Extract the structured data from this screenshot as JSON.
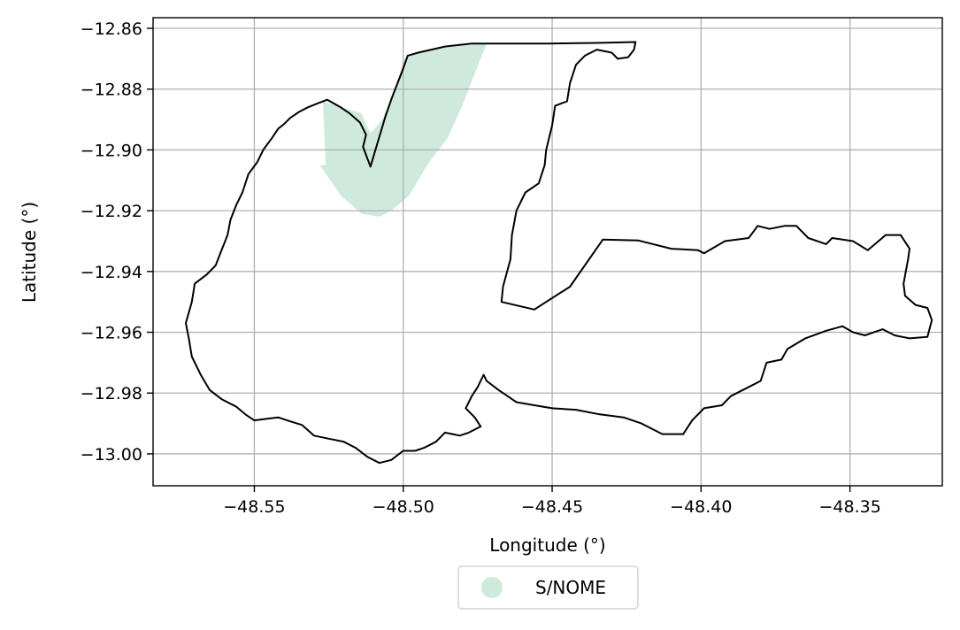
{
  "chart_data": {
    "type": "map",
    "xlabel": "Longitude (°)",
    "ylabel": "Latitude (°)",
    "xlim": [
      -48.584,
      -48.319
    ],
    "ylim": [
      -13.0105,
      -12.8565
    ],
    "x_ticks": [
      -48.55,
      -48.5,
      -48.45,
      -48.4,
      -48.35
    ],
    "y_ticks": [
      -12.86,
      -12.88,
      -12.9,
      -12.92,
      -12.94,
      -12.96,
      -12.98,
      -13.0
    ],
    "x_tick_labels": [
      "−48.55",
      "−48.50",
      "−48.45",
      "−48.40",
      "−48.35"
    ],
    "y_tick_labels": [
      "−12.86",
      "−12.88",
      "−12.90",
      "−12.92",
      "−12.94",
      "−12.96",
      "−12.98",
      "−13.00"
    ],
    "grid": true,
    "legend": {
      "placement": "bottom-center",
      "entries": [
        {
          "label": "S/NOME",
          "color": "#cfeadd"
        }
      ]
    },
    "boundary": {
      "color": "#000000",
      "points": [
        [
          -48.5255,
          -12.8835
        ],
        [
          -48.521,
          -12.886
        ],
        [
          -48.518,
          -12.888
        ],
        [
          -48.5145,
          -12.891
        ],
        [
          -48.5125,
          -12.895
        ],
        [
          -48.5135,
          -12.899
        ],
        [
          -48.511,
          -12.9055
        ],
        [
          -48.506,
          -12.889
        ],
        [
          -48.5035,
          -12.882
        ],
        [
          -48.5005,
          -12.8745
        ],
        [
          -48.4985,
          -12.869
        ],
        [
          -48.495,
          -12.868
        ],
        [
          -48.486,
          -12.866
        ],
        [
          -48.477,
          -12.865
        ],
        [
          -48.451,
          -12.865
        ],
        [
          -48.435,
          -12.8648
        ],
        [
          -48.422,
          -12.8645
        ],
        [
          -48.4225,
          -12.867
        ],
        [
          -48.4245,
          -12.8695
        ],
        [
          -48.428,
          -12.87
        ],
        [
          -48.43,
          -12.868
        ],
        [
          -48.435,
          -12.867
        ],
        [
          -48.439,
          -12.869
        ],
        [
          -48.442,
          -12.872
        ],
        [
          -48.444,
          -12.878
        ],
        [
          -48.445,
          -12.884
        ],
        [
          -48.449,
          -12.8855
        ],
        [
          -48.45,
          -12.892
        ],
        [
          -48.452,
          -12.9
        ],
        [
          -48.4525,
          -12.905
        ],
        [
          -48.4545,
          -12.911
        ],
        [
          -48.459,
          -12.914
        ],
        [
          -48.462,
          -12.92
        ],
        [
          -48.4635,
          -12.928
        ],
        [
          -48.464,
          -12.936
        ],
        [
          -48.4665,
          -12.945
        ],
        [
          -48.467,
          -12.95
        ],
        [
          -48.456,
          -12.9525
        ],
        [
          -48.444,
          -12.945
        ],
        [
          -48.433,
          -12.9295
        ],
        [
          -48.421,
          -12.9298
        ],
        [
          -48.41,
          -12.9325
        ],
        [
          -48.401,
          -12.933
        ],
        [
          -48.399,
          -12.934
        ],
        [
          -48.392,
          -12.93
        ],
        [
          -48.384,
          -12.929
        ],
        [
          -48.381,
          -12.925
        ],
        [
          -48.377,
          -12.926
        ],
        [
          -48.372,
          -12.925
        ],
        [
          -48.368,
          -12.925
        ],
        [
          -48.364,
          -12.929
        ],
        [
          -48.358,
          -12.931
        ],
        [
          -48.356,
          -12.929
        ],
        [
          -48.349,
          -12.93
        ],
        [
          -48.344,
          -12.933
        ],
        [
          -48.338,
          -12.928
        ],
        [
          -48.333,
          -12.928
        ],
        [
          -48.33,
          -12.9325
        ],
        [
          -48.3305,
          -12.936
        ],
        [
          -48.332,
          -12.944
        ],
        [
          -48.3315,
          -12.948
        ],
        [
          -48.328,
          -12.951
        ],
        [
          -48.324,
          -12.952
        ],
        [
          -48.3225,
          -12.956
        ],
        [
          -48.324,
          -12.9615
        ],
        [
          -48.33,
          -12.962
        ],
        [
          -48.335,
          -12.961
        ],
        [
          -48.339,
          -12.959
        ],
        [
          -48.345,
          -12.961
        ],
        [
          -48.349,
          -12.96
        ],
        [
          -48.3525,
          -12.958
        ],
        [
          -48.358,
          -12.9595
        ],
        [
          -48.365,
          -12.962
        ],
        [
          -48.371,
          -12.9655
        ],
        [
          -48.373,
          -12.969
        ],
        [
          -48.378,
          -12.97
        ],
        [
          -48.38,
          -12.976
        ],
        [
          -48.386,
          -12.979
        ],
        [
          -48.39,
          -12.981
        ],
        [
          -48.393,
          -12.984
        ],
        [
          -48.399,
          -12.985
        ],
        [
          -48.403,
          -12.989
        ],
        [
          -48.406,
          -12.9935
        ],
        [
          -48.413,
          -12.9935
        ],
        [
          -48.42,
          -12.99
        ],
        [
          -48.426,
          -12.988
        ],
        [
          -48.434,
          -12.987
        ],
        [
          -48.442,
          -12.9855
        ],
        [
          -48.45,
          -12.985
        ],
        [
          -48.456,
          -12.984
        ],
        [
          -48.462,
          -12.983
        ],
        [
          -48.468,
          -12.979
        ],
        [
          -48.472,
          -12.976
        ],
        [
          -48.473,
          -12.974
        ],
        [
          -48.475,
          -12.978
        ],
        [
          -48.477,
          -12.981
        ],
        [
          -48.479,
          -12.985
        ],
        [
          -48.476,
          -12.988
        ],
        [
          -48.474,
          -12.991
        ],
        [
          -48.478,
          -12.993
        ],
        [
          -48.481,
          -12.994
        ],
        [
          -48.486,
          -12.993
        ],
        [
          -48.489,
          -12.996
        ],
        [
          -48.493,
          -12.998
        ],
        [
          -48.496,
          -12.999
        ],
        [
          -48.5,
          -12.999
        ],
        [
          -48.504,
          -13.002
        ],
        [
          -48.508,
          -13.003
        ],
        [
          -48.512,
          -13.001
        ],
        [
          -48.516,
          -12.998
        ],
        [
          -48.52,
          -12.996
        ],
        [
          -48.525,
          -12.995
        ],
        [
          -48.53,
          -12.994
        ],
        [
          -48.534,
          -12.9905
        ],
        [
          -48.539,
          -12.989
        ],
        [
          -48.542,
          -12.988
        ],
        [
          -48.546,
          -12.9885
        ],
        [
          -48.55,
          -12.989
        ],
        [
          -48.553,
          -12.987
        ],
        [
          -48.556,
          -12.9845
        ],
        [
          -48.561,
          -12.982
        ],
        [
          -48.565,
          -12.979
        ],
        [
          -48.568,
          -12.974
        ],
        [
          -48.571,
          -12.968
        ],
        [
          -48.572,
          -12.962
        ],
        [
          -48.573,
          -12.957
        ],
        [
          -48.571,
          -12.95
        ],
        [
          -48.57,
          -12.944
        ],
        [
          -48.566,
          -12.941
        ],
        [
          -48.563,
          -12.938
        ],
        [
          -48.561,
          -12.933
        ],
        [
          -48.559,
          -12.928
        ],
        [
          -48.558,
          -12.923
        ],
        [
          -48.556,
          -12.918
        ],
        [
          -48.554,
          -12.914
        ],
        [
          -48.552,
          -12.908
        ],
        [
          -48.549,
          -12.904
        ],
        [
          -48.547,
          -12.9
        ],
        [
          -48.544,
          -12.896
        ],
        [
          -48.542,
          -12.893
        ],
        [
          -48.54,
          -12.8915
        ],
        [
          -48.538,
          -12.8895
        ],
        [
          -48.535,
          -12.8875
        ],
        [
          -48.532,
          -12.886
        ],
        [
          -48.529,
          -12.8848
        ],
        [
          -48.5255,
          -12.8835
        ]
      ]
    },
    "regions": [
      {
        "name": "S/NOME",
        "color": "#cfeadd",
        "points": [
          [
            -48.527,
            -12.884
          ],
          [
            -48.514,
            -12.888
          ],
          [
            -48.511,
            -12.8945
          ],
          [
            -48.507,
            -12.89
          ],
          [
            -48.503,
            -12.88
          ],
          [
            -48.4995,
            -12.87
          ],
          [
            -48.496,
            -12.868
          ],
          [
            -48.485,
            -12.866
          ],
          [
            -48.472,
            -12.865
          ],
          [
            -48.476,
            -12.875
          ],
          [
            -48.48,
            -12.885
          ],
          [
            -48.485,
            -12.896
          ],
          [
            -48.492,
            -12.905
          ],
          [
            -48.498,
            -12.915
          ],
          [
            -48.504,
            -12.92
          ],
          [
            -48.508,
            -12.922
          ],
          [
            -48.514,
            -12.921
          ],
          [
            -48.521,
            -12.915
          ],
          [
            -48.528,
            -12.905
          ],
          [
            -48.526,
            -12.905
          ],
          [
            -48.527,
            -12.884
          ]
        ]
      }
    ]
  }
}
